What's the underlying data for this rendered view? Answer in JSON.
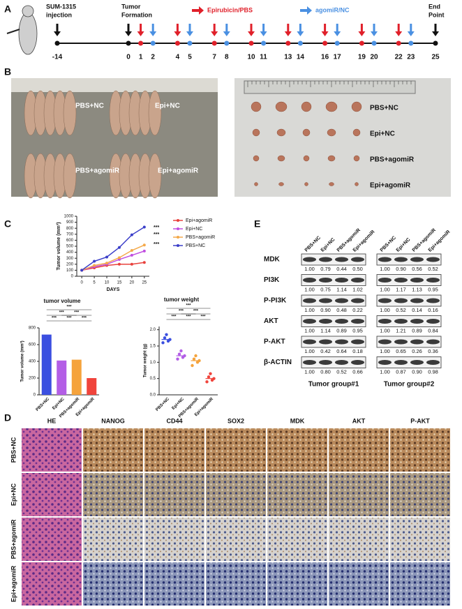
{
  "panel_labels": [
    "A",
    "B",
    "C",
    "D",
    "E"
  ],
  "timeline": {
    "events": [
      {
        "day": -14,
        "lines": [
          "SUM-1315",
          "injection"
        ]
      },
      {
        "day": 0,
        "lines": [
          "Tumor",
          "Formation"
        ]
      },
      {
        "day": 25,
        "lines": [
          "End",
          "Point"
        ]
      }
    ],
    "legend": [
      {
        "name": "Epirubicin/PBS",
        "color": "#e0202a"
      },
      {
        "name": "agomiR/NC",
        "color": "#4a90e2"
      }
    ],
    "days": [
      -14,
      0,
      1,
      2,
      4,
      5,
      7,
      8,
      10,
      11,
      13,
      14,
      16,
      17,
      19,
      20,
      22,
      23,
      25
    ],
    "arrow_colors": [
      "#111",
      "#111",
      "#e0202a",
      "#4a90e2",
      "#e0202a",
      "#4a90e2",
      "#e0202a",
      "#4a90e2",
      "#e0202a",
      "#4a90e2",
      "#e0202a",
      "#4a90e2",
      "#e0202a",
      "#4a90e2",
      "#e0202a",
      "#4a90e2",
      "#e0202a",
      "#4a90e2",
      "#111"
    ]
  },
  "photos": {
    "mice_labels": [
      "PBS+NC",
      "Epi+NC",
      "PBS+agomiR",
      "Epi+agomiR"
    ],
    "tumor_labels": [
      "PBS+NC",
      "Epi+NC",
      "PBS+agomiR",
      "Epi+agomiR"
    ]
  },
  "chart_data": [
    {
      "type": "line",
      "x_label": "DAYS",
      "y_label": "Tumor volume (mm³)",
      "x": [
        0,
        5,
        10,
        15,
        20,
        25
      ],
      "xlim": [
        -2,
        27
      ],
      "xticks": [
        0,
        5,
        10,
        15,
        20,
        25
      ],
      "ylim": [
        0,
        1000
      ],
      "yticks": [
        0,
        100,
        200,
        300,
        400,
        500,
        600,
        700,
        800,
        900,
        1000
      ],
      "series": [
        {
          "name": "Epi+agomiR",
          "color": "#e8413c",
          "values": [
            100,
            140,
            180,
            200,
            200,
            230
          ]
        },
        {
          "name": "Epi+NC",
          "color": "#c04ee0",
          "values": [
            100,
            160,
            200,
            280,
            350,
            420
          ]
        },
        {
          "name": "PBS+agomiR",
          "color": "#f4a94a",
          "values": [
            100,
            180,
            220,
            310,
            430,
            520
          ]
        },
        {
          "name": "PBS+NC",
          "color": "#3b3fc9",
          "values": [
            100,
            250,
            320,
            480,
            690,
            820
          ]
        }
      ],
      "annotations": [
        "***",
        "***",
        "***"
      ]
    },
    {
      "type": "bar",
      "title": "tumor volume",
      "y_label": "Tumor volume (mm³)",
      "categories": [
        "PBS+NC",
        "Epi+NC",
        "PBS+agomiR",
        "Epi+agomiR"
      ],
      "values": [
        720,
        410,
        420,
        200
      ],
      "colors": [
        "#3b4fe0",
        "#b35ee6",
        "#f5a33c",
        "#f0443c"
      ],
      "ylim": [
        0,
        800
      ],
      "yticks": [
        0,
        200,
        400,
        600,
        800
      ],
      "annotations": [
        "***",
        "***",
        "***",
        "***",
        "***",
        "***"
      ]
    },
    {
      "type": "dot",
      "title": "tumor weight",
      "y_label": "Tumor weight (g)",
      "categories": [
        "PBS+NC",
        "Epi+NC",
        "PBS+agomiR",
        "Epi+agomiR"
      ],
      "values": [
        1.7,
        1.2,
        1.05,
        0.5
      ],
      "points": [
        [
          1.6,
          1.75,
          1.85,
          1.65,
          1.7
        ],
        [
          1.1,
          1.25,
          1.35,
          1.15,
          1.2
        ],
        [
          0.9,
          1.1,
          1.2,
          1.0,
          1.05
        ],
        [
          0.4,
          0.55,
          0.65,
          0.45,
          0.5
        ]
      ],
      "colors": [
        "#3b4fe0",
        "#b35ee6",
        "#f5a33c",
        "#f0443c"
      ],
      "ylim": [
        0,
        2.1
      ],
      "yticks": [
        {
          "value": 0,
          "label": "0.0"
        },
        {
          "value": 0.5,
          "label": "0.5"
        },
        {
          "value": 1,
          "label": "1.0"
        },
        {
          "value": 1.5,
          "label": "1.5"
        },
        {
          "value": 2,
          "label": "2.0"
        }
      ],
      "annotations": [
        "***",
        "***",
        "***",
        "***",
        "***",
        "***"
      ]
    }
  ],
  "western_blot": {
    "lanes": [
      "PBS+NC",
      "Epi+NC",
      "PBS+agomiR",
      "Epi+agomiR"
    ],
    "proteins": [
      "MDK",
      "PI3K",
      "P-PI3K",
      "AKT",
      "P-AKT",
      "β-ACTIN"
    ],
    "groups": [
      {
        "name": "Tumor group#1",
        "values": [
          [
            "1.00",
            "0.79",
            "0.44",
            "0.50"
          ],
          [
            "1.00",
            "0.75",
            "1.14",
            "1.02"
          ],
          [
            "1.00",
            "0.90",
            "0.48",
            "0.22"
          ],
          [
            "1.00",
            "1.14",
            "0.89",
            "0.95"
          ],
          [
            "1.00",
            "0.42",
            "0.64",
            "0.18"
          ],
          [
            "1.00",
            "0.80",
            "0.52",
            "0.66"
          ]
        ]
      },
      {
        "name": "Tumor group#2",
        "values": [
          [
            "1.00",
            "0.90",
            "0.56",
            "0.52"
          ],
          [
            "1.00",
            "1.17",
            "1.13",
            "0.95"
          ],
          [
            "1.00",
            "0.52",
            "0.14",
            "0.16"
          ],
          [
            "1.00",
            "1.21",
            "0.89",
            "0.84"
          ],
          [
            "1.00",
            "0.65",
            "0.26",
            "0.36"
          ],
          [
            "1.00",
            "0.87",
            "0.90",
            "0.98"
          ]
        ]
      }
    ]
  },
  "ihc": {
    "stains": [
      "HE",
      "NANOG",
      "CD44",
      "SOX2",
      "MDK",
      "AKT",
      "P-AKT"
    ],
    "groups": [
      "PBS+NC",
      "Epi+NC",
      "PBS+agomiR",
      "Epi+agomiR"
    ]
  }
}
